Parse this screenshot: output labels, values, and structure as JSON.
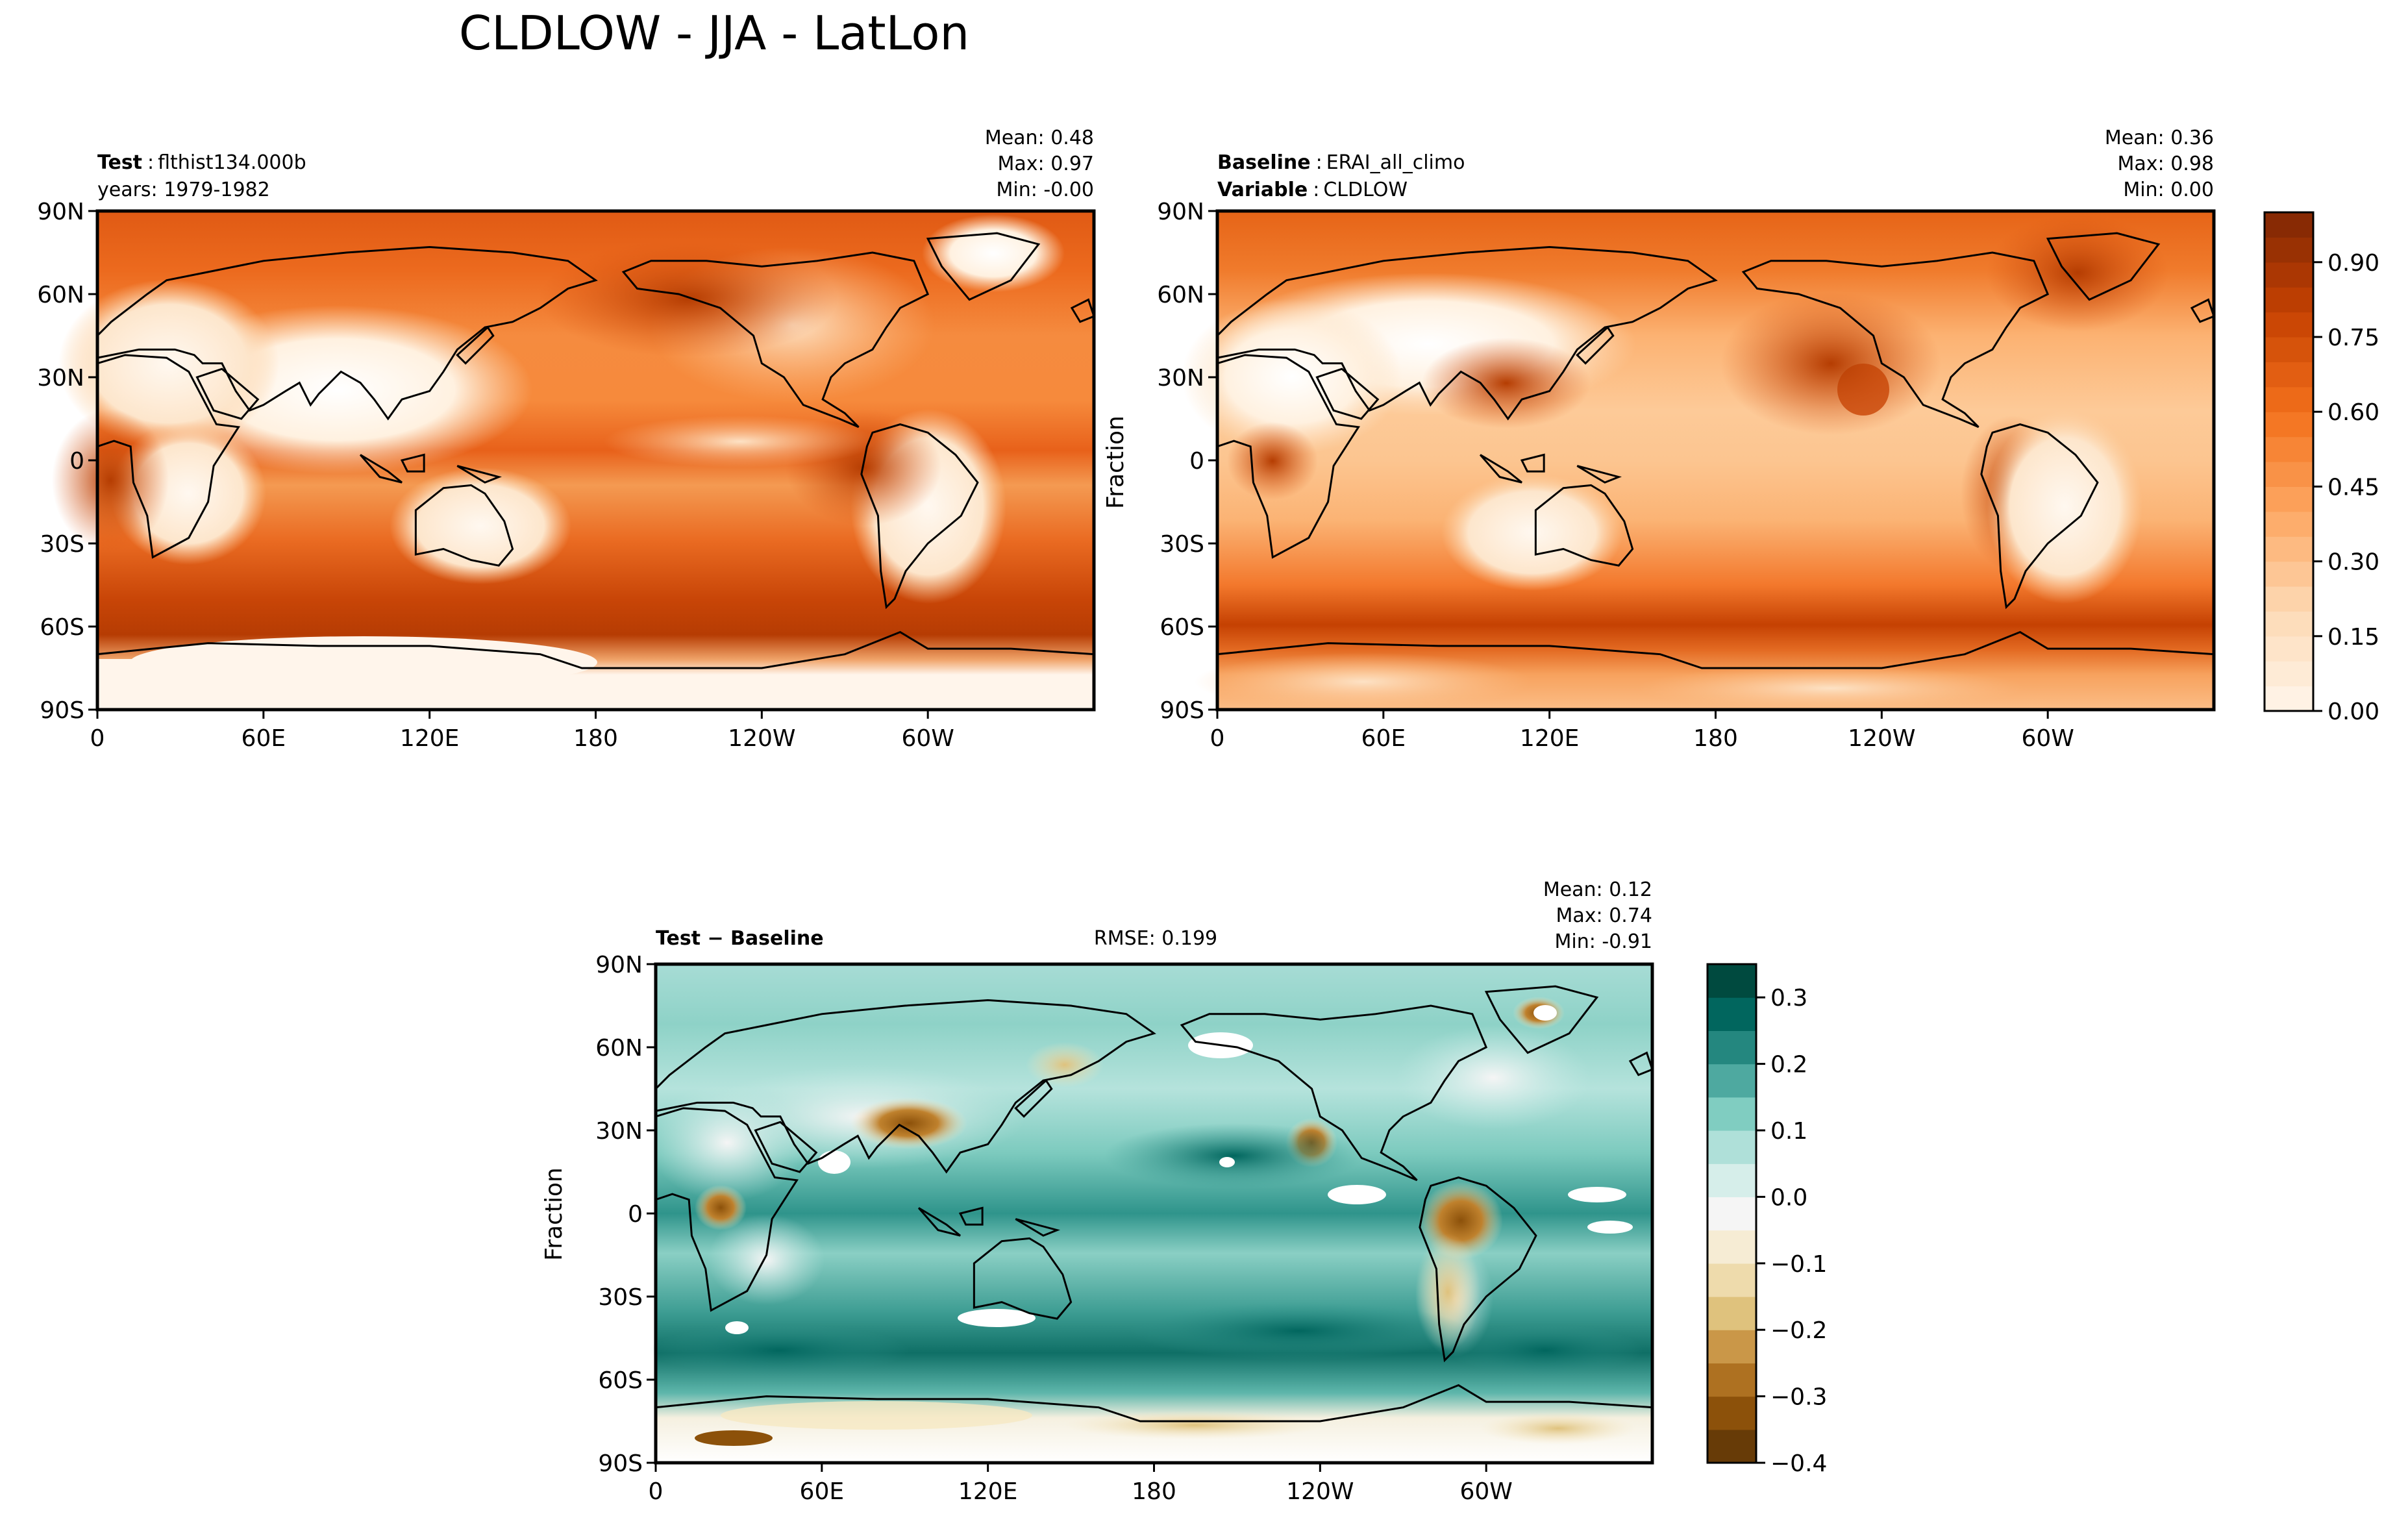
{
  "figure": {
    "title": "CLDLOW - JJA - LatLon"
  },
  "axes": {
    "lon_ticks": [
      "0",
      "60E",
      "120E",
      "180",
      "120W",
      "60W"
    ],
    "lat_ticks": [
      "90N",
      "60N",
      "30N",
      "0",
      "30S",
      "60S",
      "90S"
    ],
    "lon_range": [
      0,
      360
    ],
    "lat_range": [
      -90,
      90
    ]
  },
  "panels": [
    {
      "id": "test",
      "header_bold": "Test",
      "header_sep": ":",
      "header_text": "flthist134.000b",
      "header_line2": "years: 1979-1982",
      "stats": [
        "Mean:  0.48",
        "Max:  0.97",
        "Min: -0.00"
      ]
    },
    {
      "id": "baseline",
      "header_bold": "Baseline",
      "header_sep": ":",
      "header_text": "ERAI_all_climo",
      "header_line2_bold": "Variable",
      "header_line2_sep": ":",
      "header_line2": "CLDLOW",
      "ylabel": "Fraction",
      "stats": [
        "Mean:  0.36",
        "Max:  0.98",
        "Min:  0.00"
      ]
    },
    {
      "id": "diff",
      "header_bold": "Test − Baseline",
      "rmse": "RMSE: 0.199",
      "ylabel": "Fraction",
      "stats": [
        "Mean:  0.12",
        "Max:  0.74",
        "Min: -0.91"
      ]
    }
  ],
  "colorbars": [
    {
      "id": "orange-colorbar",
      "ticks": [
        "0.00",
        "0.15",
        "0.30",
        "0.45",
        "0.60",
        "0.75",
        "0.90"
      ],
      "tick_values": [
        0.0,
        0.15,
        0.3,
        0.45,
        0.6,
        0.75,
        0.9
      ],
      "range": [
        0.0,
        1.0
      ],
      "levels": 20,
      "colors_low_high": [
        "#fff5eb",
        "#fdd9b4",
        "#fda762",
        "#f3701b",
        "#c54102",
        "#7f2704"
      ]
    },
    {
      "id": "diff-colorbar",
      "ticks": [
        "0.3",
        "0.2",
        "0.1",
        "0.0",
        "−0.1",
        "−0.2",
        "−0.3",
        "−0.4"
      ],
      "tick_values": [
        0.3,
        0.2,
        0.1,
        0.0,
        -0.1,
        -0.2,
        -0.3,
        -0.4
      ],
      "range": [
        -0.4,
        0.35
      ],
      "levels": 15,
      "colors_low_high": [
        "#543005",
        "#8c510a",
        "#bf812d",
        "#dfc27d",
        "#f6e8c3",
        "#f5f5f5",
        "#c7eae5",
        "#80cdc1",
        "#35978f",
        "#01665e",
        "#003c30"
      ]
    }
  ],
  "chart_data": [
    {
      "type": "heatmap",
      "title": "Test : flthist134.000b",
      "xlabel": "",
      "ylabel": "",
      "xlim": [
        0,
        360
      ],
      "ylim": [
        -90,
        90
      ],
      "mean": 0.48,
      "max": 0.97,
      "min": -0.0
    },
    {
      "type": "heatmap",
      "title": "Baseline : ERAI_all_climo",
      "xlabel": "",
      "ylabel": "Fraction",
      "xlim": [
        0,
        360
      ],
      "ylim": [
        -90,
        90
      ],
      "mean": 0.36,
      "max": 0.98,
      "min": 0.0
    },
    {
      "type": "heatmap",
      "title": "Test − Baseline",
      "xlabel": "",
      "ylabel": "Fraction",
      "xlim": [
        0,
        360
      ],
      "ylim": [
        -90,
        90
      ],
      "mean": 0.12,
      "max": 0.74,
      "min": -0.91,
      "rmse": 0.199
    }
  ]
}
